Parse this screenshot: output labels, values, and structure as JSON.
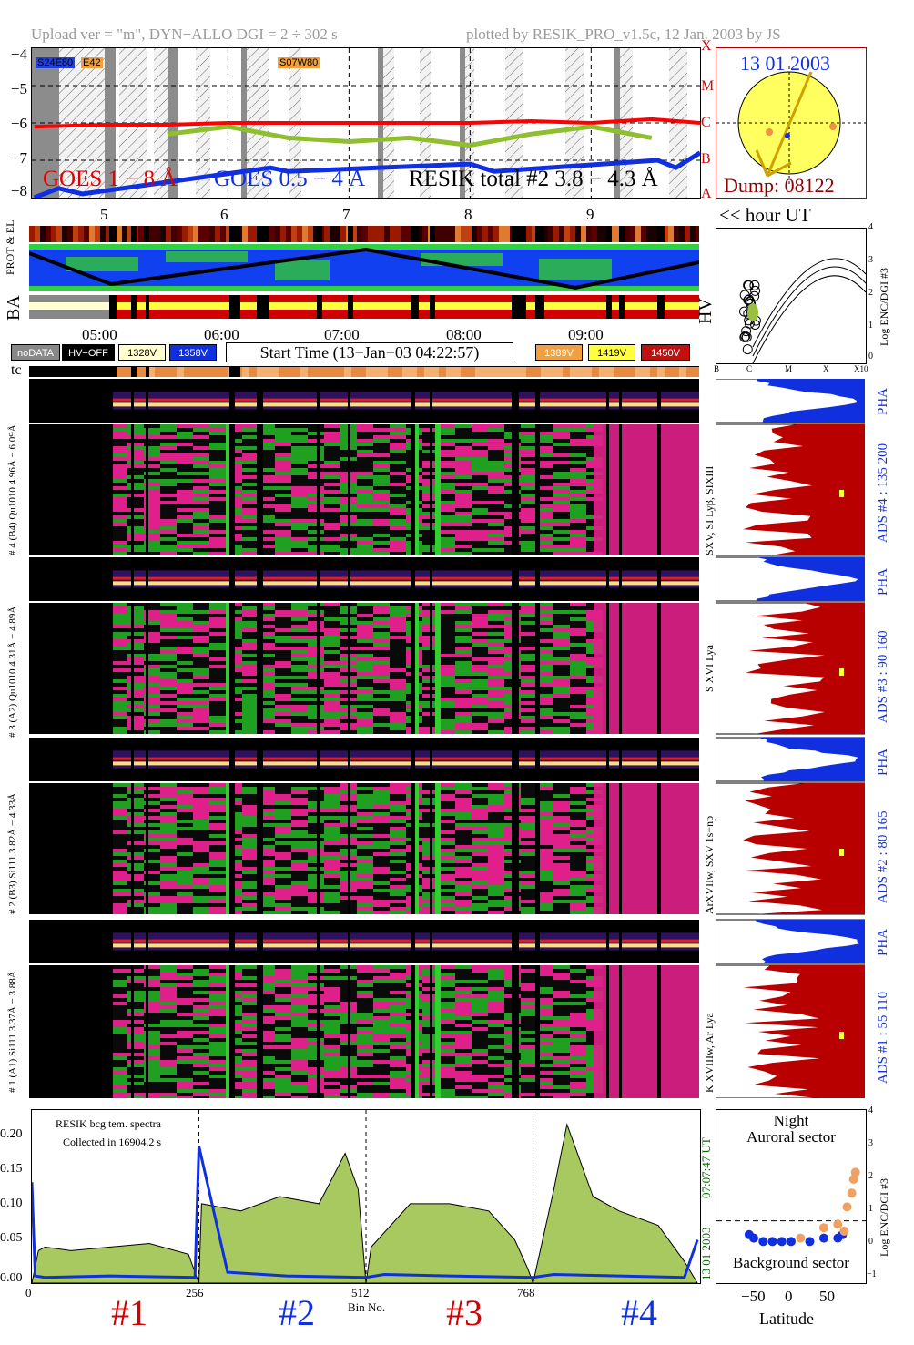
{
  "header": {
    "left": "Upload ver = \"m\", DYN−ALLO DGI =   2 ÷ 302 s",
    "right": "plotted by RESIK_PRO_v1.5c, 12 Jan. 2003 by JS"
  },
  "goes_panel": {
    "y_ticks": [
      "−4",
      "−5",
      "−6",
      "−7",
      "−8"
    ],
    "class_letters": [
      "X",
      "M",
      "C",
      "B",
      "A"
    ],
    "ar_labels": [
      "S24E80",
      "E42",
      "S07W80"
    ],
    "legend_goes1": "GOES 1 − 8 Å",
    "legend_goes05": "GOES 0.5 − 4 Å",
    "legend_resik": "RESIK total #2  3.8 − 4.3 Å",
    "hour_ticks": [
      "5",
      "6",
      "7",
      "8",
      "9"
    ],
    "colors": {
      "goes1": "#ff0000",
      "goes05": "#1030e0",
      "resik": "#8fbf2f"
    }
  },
  "sun_panel": {
    "date": "13 01 2003",
    "dump": "Dump: 08122"
  },
  "hour_ut_label": "<< hour UT",
  "strip_labels": {
    "prot_el": "PROT & EL",
    "ba": "BA",
    "hv": "HV",
    "tc": "tc"
  },
  "time_ticks": [
    "05:00",
    "06:00",
    "07:00",
    "08:00",
    "09:00"
  ],
  "legend": {
    "nodata": "noDATA",
    "hvoff": "HV−OFF",
    "v1328": "1328V",
    "v1358": "1358V",
    "start_time": "Start Time (13−Jan−03 04:22:57)",
    "v1389": "1389V",
    "v1419": "1419V",
    "v1450": "1450V"
  },
  "hv_panel": {
    "y_ticks": [
      "4",
      "3",
      "2",
      "1",
      "0"
    ],
    "y_label": "Log ENC/DGI #3",
    "x_ticks": [
      "B",
      "C",
      "M",
      "X",
      "X10"
    ]
  },
  "channels": [
    {
      "left": "# 4 (B4) Qu1010  4.96Å − 6.09Å",
      "right": "SXV, SI Lyβ, SIXIII",
      "ads": "ADS #4 :   135 200",
      "pha": "PHA"
    },
    {
      "left": "# 3 (A2) Qu1010  4.31Å − 4.89Å",
      "right": "S XVI Lya",
      "ads": "ADS #3 :   90 160",
      "pha": "PHA"
    },
    {
      "left": "# 2 (B3) Si111  3.82Å − 4.33Å",
      "right": "ArXVIIw, SXV 1s−np",
      "ads": "ADS #2 :   80 165",
      "pha": "PHA"
    },
    {
      "left": "# 1 (A1) Si111  3.37Å − 3.88Å",
      "right": "K XVIIIw, Ar Lya",
      "ads": "ADS #1 :   55 110",
      "pha": "PHA"
    }
  ],
  "bottom_left": {
    "note1": "RESIK bcg tem. spectra",
    "note2": "Collected in 16904.2 s",
    "y_ticks": [
      "0.20",
      "0.15",
      "0.10",
      "0.05",
      "0.00"
    ],
    "x_ticks": [
      "0",
      "256",
      "512",
      "768"
    ],
    "x_label": "Bin No.",
    "side_date": "13 01 2003",
    "side_time": "07:07:47 UT",
    "marks": [
      "#1",
      "#2",
      "#3",
      "#4"
    ],
    "mark_colors": [
      "#d40000",
      "#1030e0",
      "#d40000",
      "#1030e0"
    ]
  },
  "bottom_right": {
    "title1": "Night",
    "title2": "Auroral sector",
    "bottom_label": "Background sector",
    "y_ticks": [
      "4",
      "3",
      "2",
      "1",
      "0",
      "−1"
    ],
    "y_label": "Log ENC/DGI #3",
    "x_ticks": [
      "−50",
      "0",
      "50"
    ],
    "x_label": "Latitude"
  },
  "chart_data": [
    {
      "type": "line",
      "title": "",
      "ylabel": "",
      "ylim": [
        -8,
        -4
      ],
      "xlim": [
        4.38,
        9.9
      ],
      "series": [
        {
          "name": "GOES 1 − 8 Å",
          "x": [
            4.4,
            5.0,
            5.5,
            6.0,
            6.5,
            7.0,
            7.5,
            8.0,
            8.5,
            9.0,
            9.5,
            9.9
          ],
          "values": [
            -6.1,
            -6.05,
            -6.05,
            -6.0,
            -6.0,
            -6.0,
            -6.0,
            -6.0,
            -5.95,
            -6.0,
            -5.9,
            -6.0
          ]
        },
        {
          "name": "GOES 0.5 − 4 Å",
          "x": [
            4.4,
            4.6,
            4.8,
            6.35,
            6.5,
            8.0,
            8.2,
            9.55,
            9.7,
            9.9
          ],
          "values": [
            -8.0,
            -7.75,
            -7.9,
            -7.2,
            -7.3,
            -7.1,
            -7.3,
            -7.0,
            -7.2,
            -6.8
          ]
        },
        {
          "name": "RESIK total #2  3.8 − 4.3 Å",
          "x": [
            5.5,
            6.0,
            6.5,
            7.0,
            7.5,
            8.0,
            8.5,
            9.0,
            9.5
          ],
          "values": [
            -6.3,
            -6.1,
            -6.4,
            -6.5,
            -6.4,
            -6.6,
            -6.3,
            -6.1,
            -6.4
          ]
        }
      ]
    },
    {
      "type": "area",
      "title": "",
      "xlabel": "Bin No.",
      "ylabel": "",
      "xlim": [
        0,
        1024
      ],
      "ylim": [
        0,
        0.24
      ],
      "series": [
        {
          "name": "",
          "x": [
            0,
            10,
            20,
            60,
            120,
            180,
            240,
            256,
            260,
            320,
            380,
            440,
            480,
            500,
            512,
            520,
            580,
            640,
            700,
            740,
            760,
            768,
            800,
            820,
            860,
            900,
            960,
            1000,
            1020
          ],
          "values": [
            0.0,
            0.045,
            0.05,
            0.045,
            0.05,
            0.055,
            0.04,
            0.0,
            0.11,
            0.1,
            0.12,
            0.11,
            0.18,
            0.13,
            0.0,
            0.05,
            0.11,
            0.11,
            0.1,
            0.06,
            0.02,
            0.0,
            0.13,
            0.22,
            0.12,
            0.1,
            0.08,
            0.03,
            0.0
          ]
        },
        {
          "name": "",
          "x": [
            0,
            5,
            20,
            120,
            250,
            256,
            300,
            390,
            512,
            540,
            640,
            768,
            800,
            900,
            1000,
            1020
          ],
          "values": [
            0.14,
            0.01,
            0.008,
            0.01,
            0.008,
            0.19,
            0.015,
            0.01,
            0.008,
            0.012,
            0.01,
            0.008,
            0.012,
            0.01,
            0.008,
            0.06
          ]
        }
      ]
    },
    {
      "type": "scatter",
      "title": "",
      "xlabel": "Latitude",
      "ylabel": "Log ENC/DGI #3",
      "xlim": [
        -75,
        85
      ],
      "ylim": [
        -1,
        4
      ],
      "series": [
        {
          "name": "",
          "x": [
            -40,
            -35,
            -25,
            -15,
            -5,
            5,
            25,
            40,
            55,
            60
          ],
          "values": [
            0.4,
            0.3,
            0.2,
            0.2,
            0.2,
            0.2,
            0.2,
            0.3,
            0.3,
            0.4
          ]
        },
        {
          "name": "",
          "x": [
            15,
            40,
            55,
            62,
            65,
            70,
            72,
            74
          ],
          "values": [
            0.3,
            0.6,
            0.7,
            0.5,
            1.2,
            1.6,
            2.0,
            2.2
          ]
        }
      ]
    }
  ]
}
